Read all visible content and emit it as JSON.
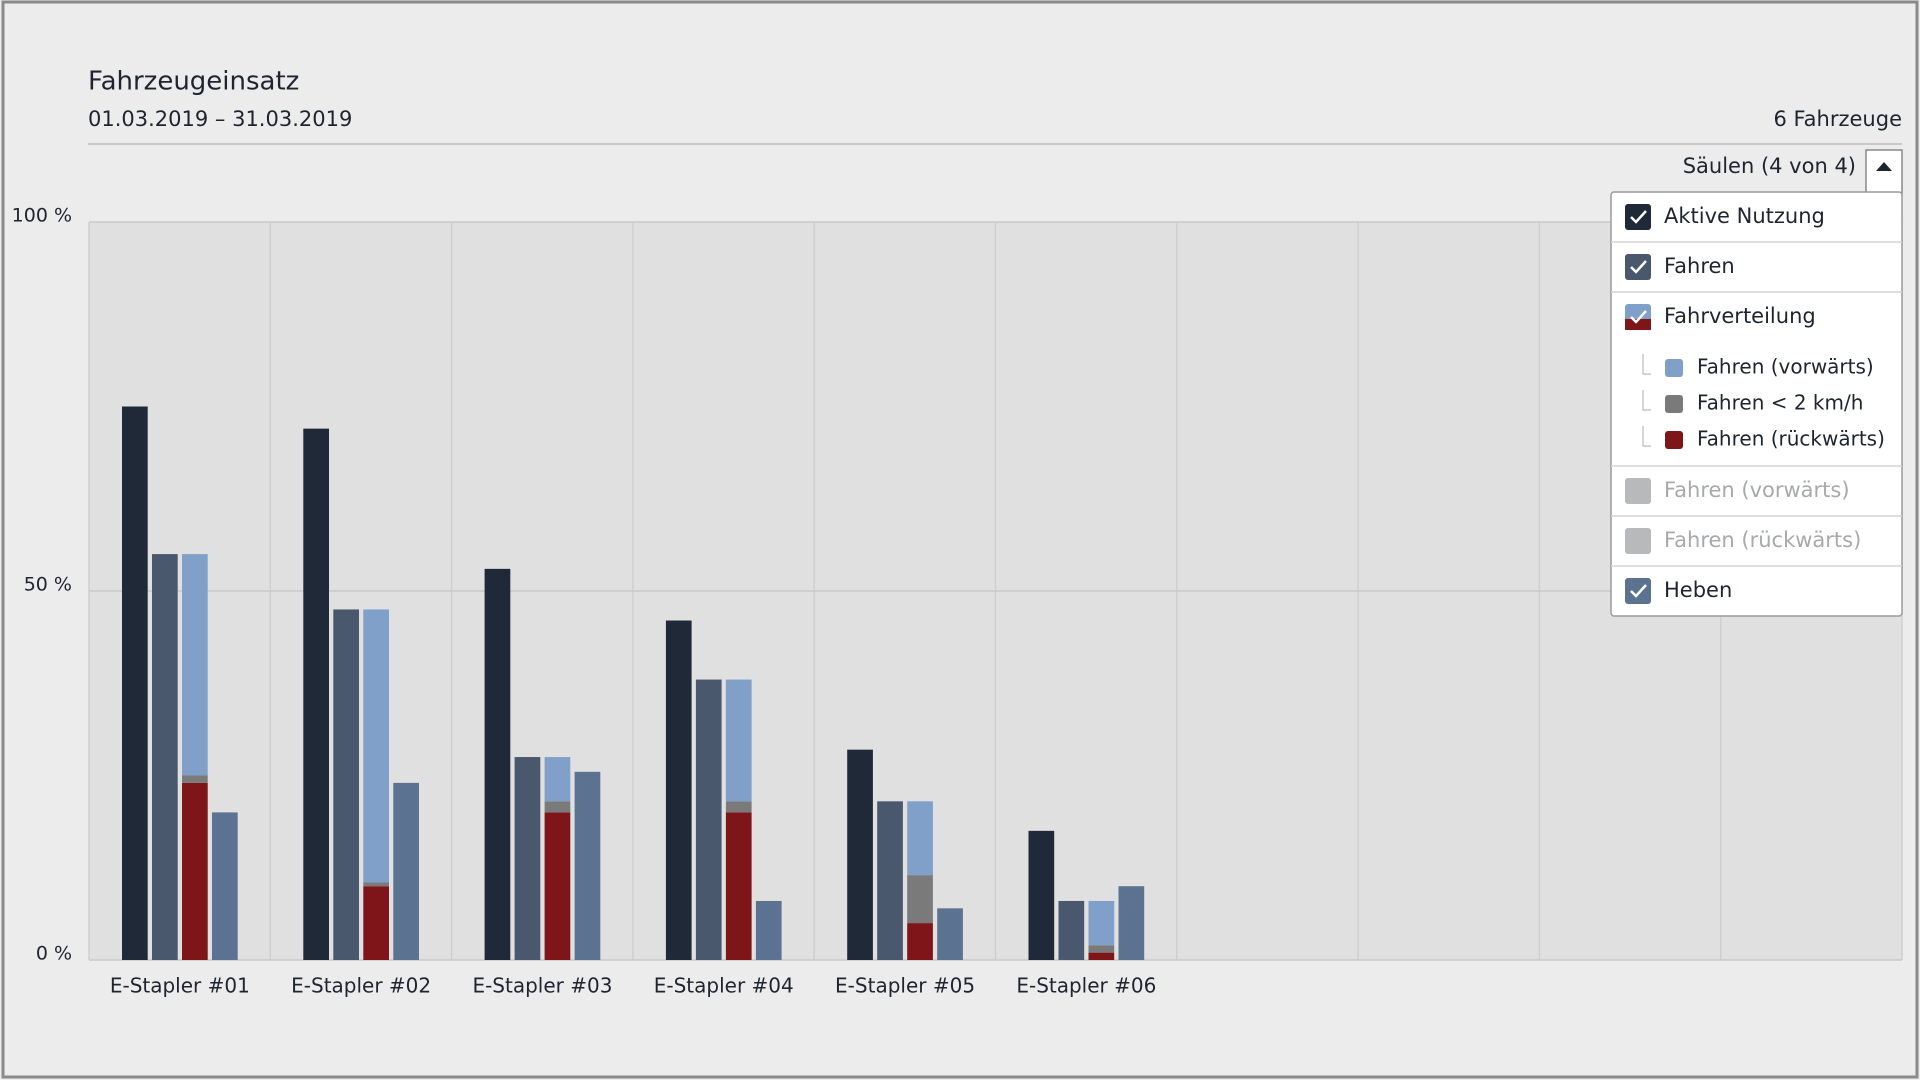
{
  "chart_data": {
    "type": "grouped-stacked-bar",
    "title": "Fahrzeugeinsatz",
    "subtitle": "01.03.2019 – 31.03.2019",
    "vehicle_count": "6 Fahrzeuge",
    "legend_toggle": "Säulen (4 von 4)",
    "categories": [
      "E-Stapler #01",
      "E-Stapler #02",
      "E-Stapler #03",
      "E-Stapler #04",
      "E-Stapler #05",
      "E-Stapler #06",
      null,
      null,
      null,
      null
    ],
    "ylim": [
      0,
      100
    ],
    "yticks": [
      {
        "value": 0,
        "label": "0 %"
      },
      {
        "value": 50,
        "label": "50 %"
      },
      {
        "value": 100,
        "label": "100 %"
      }
    ],
    "grid": true,
    "legend_position": "top-right",
    "series": [
      {
        "name": "Aktive Nutzung",
        "color": "#1f2938",
        "visible": true,
        "values": [
          75,
          72,
          53,
          46,
          28.5,
          17.5,
          null,
          null,
          null,
          null
        ]
      },
      {
        "name": "Fahren",
        "color": "#4a586d",
        "visible": true,
        "values": [
          55,
          47.5,
          27.5,
          38,
          21.5,
          8,
          null,
          null,
          null,
          null
        ]
      },
      {
        "name": "Fahrverteilung",
        "visible": true,
        "segments": [
          {
            "name": "Fahren (rückwärts)",
            "color": "#7e1519",
            "values": [
              24,
              10,
              20,
              20,
              5,
              1,
              null,
              null,
              null,
              null
            ]
          },
          {
            "name": "Fahren < 2 km/h",
            "color": "#7a7a7a",
            "values": [
              1,
              0.5,
              1.5,
              1.5,
              6.5,
              1,
              null,
              null,
              null,
              null
            ]
          },
          {
            "name": "Fahren (vorwärts)",
            "color": "#809fc9",
            "values": [
              30,
              37,
              6,
              16.5,
              10,
              6,
              null,
              null,
              null,
              null
            ]
          }
        ]
      },
      {
        "name": "Fahren (vorwärts)",
        "visible": false
      },
      {
        "name": "Fahren (rückwärts)",
        "visible": false
      },
      {
        "name": "Heben",
        "color": "#5b7390",
        "visible": true,
        "values": [
          20,
          24,
          25.5,
          8,
          7,
          10,
          null,
          null,
          null,
          null
        ]
      }
    ]
  }
}
